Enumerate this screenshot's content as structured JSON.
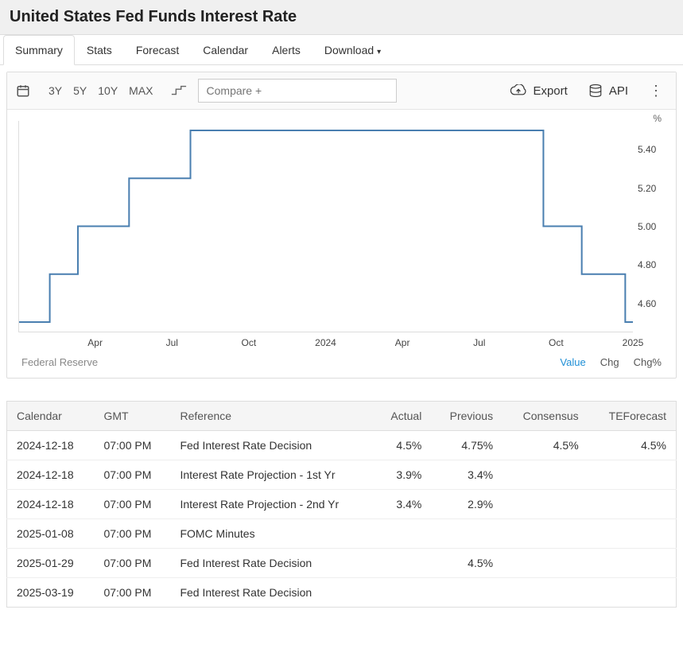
{
  "title": "United States Fed Funds Interest Rate",
  "tabs": [
    {
      "label": "Summary",
      "active": true
    },
    {
      "label": "Stats",
      "active": false
    },
    {
      "label": "Forecast",
      "active": false
    },
    {
      "label": "Calendar",
      "active": false
    },
    {
      "label": "Alerts",
      "active": false
    },
    {
      "label": "Download",
      "active": false,
      "dropdown": true
    }
  ],
  "toolbar": {
    "ranges": [
      "3Y",
      "5Y",
      "10Y",
      "MAX"
    ],
    "compare_placeholder": "Compare +",
    "export_label": "Export",
    "api_label": "API"
  },
  "chart": {
    "type": "step-line",
    "y_unit": "%",
    "line_color": "#4a7fb0",
    "line_width": 2,
    "plot_border_color": "#dddddd",
    "background_color": "#ffffff",
    "y_axis": {
      "min": 4.45,
      "max": 5.55,
      "ticks": [
        4.6,
        4.8,
        5.0,
        5.2,
        5.4
      ],
      "tick_labels": [
        "4.60",
        "4.80",
        "5.00",
        "5.20",
        "5.40"
      ]
    },
    "x_axis": {
      "min": 0,
      "max": 24,
      "ticks": [
        3,
        6,
        9,
        12,
        15,
        18,
        21,
        24
      ],
      "tick_labels": [
        "Apr",
        "Jul",
        "Oct",
        "2024",
        "Apr",
        "Jul",
        "Oct",
        "2025"
      ]
    },
    "series": [
      {
        "x": 0,
        "y": 4.5
      },
      {
        "x": 1.2,
        "y": 4.75
      },
      {
        "x": 2.3,
        "y": 5.0
      },
      {
        "x": 4.3,
        "y": 5.25
      },
      {
        "x": 6.7,
        "y": 5.5
      },
      {
        "x": 20.5,
        "y": 5.0
      },
      {
        "x": 22.0,
        "y": 4.75
      },
      {
        "x": 23.7,
        "y": 4.5
      }
    ],
    "source": "Federal Reserve",
    "footer_links": [
      {
        "label": "Value",
        "active": true
      },
      {
        "label": "Chg",
        "active": false
      },
      {
        "label": "Chg%",
        "active": false
      }
    ]
  },
  "calendar": {
    "columns": [
      "Calendar",
      "GMT",
      "Reference",
      "Actual",
      "Previous",
      "Consensus",
      "TEForecast"
    ],
    "col_numeric": [
      false,
      false,
      false,
      true,
      true,
      true,
      true
    ],
    "rows": [
      [
        "2024-12-18",
        "07:00 PM",
        "Fed Interest Rate Decision",
        "4.5%",
        "4.75%",
        "4.5%",
        "4.5%"
      ],
      [
        "2024-12-18",
        "07:00 PM",
        "Interest Rate Projection - 1st Yr",
        "3.9%",
        "3.4%",
        "",
        ""
      ],
      [
        "2024-12-18",
        "07:00 PM",
        "Interest Rate Projection - 2nd Yr",
        "3.4%",
        "2.9%",
        "",
        ""
      ],
      [
        "2025-01-08",
        "07:00 PM",
        "FOMC Minutes",
        "",
        "",
        "",
        ""
      ],
      [
        "2025-01-29",
        "07:00 PM",
        "Fed Interest Rate Decision",
        "",
        "4.5%",
        "",
        ""
      ],
      [
        "2025-03-19",
        "07:00 PM",
        "Fed Interest Rate Decision",
        "",
        "",
        "",
        ""
      ]
    ]
  }
}
